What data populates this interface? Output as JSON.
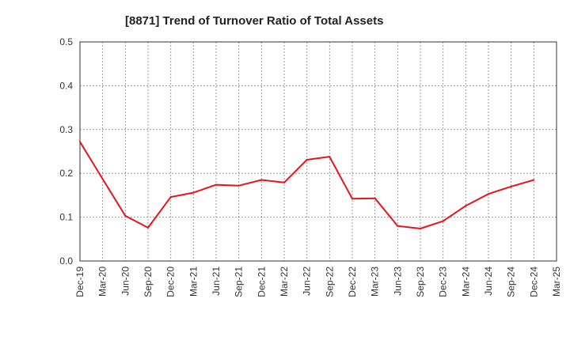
{
  "chart_data": {
    "type": "line",
    "title": "[8871]  Trend of Turnover Ratio of Total Assets",
    "xlabel": "",
    "ylabel": "",
    "categories": [
      "Dec-19",
      "Mar-20",
      "Jun-20",
      "Sep-20",
      "Dec-20",
      "Mar-21",
      "Jun-21",
      "Sep-21",
      "Dec-21",
      "Mar-22",
      "Jun-22",
      "Sep-22",
      "Dec-22",
      "Mar-23",
      "Jun-23",
      "Sep-23",
      "Dec-23",
      "Mar-24",
      "Jun-24",
      "Sep-24",
      "Dec-24",
      "Mar-25"
    ],
    "yticks": [
      "0.0",
      "0.1",
      "0.2",
      "0.3",
      "0.4",
      "0.5"
    ],
    "ylim": [
      0,
      0.5
    ],
    "grid": true,
    "series": [
      {
        "values": [
          0.272,
          0.187,
          0.103,
          0.076,
          0.146,
          0.156,
          0.174,
          0.172,
          0.185,
          0.179,
          0.231,
          0.238,
          0.142,
          0.143,
          0.08,
          0.074,
          0.091,
          0.126,
          0.153,
          0.17,
          0.185,
          null
        ]
      }
    ],
    "colors": {
      "line": "#e8141b",
      "grid": "#999999",
      "axis": "#333333"
    }
  }
}
